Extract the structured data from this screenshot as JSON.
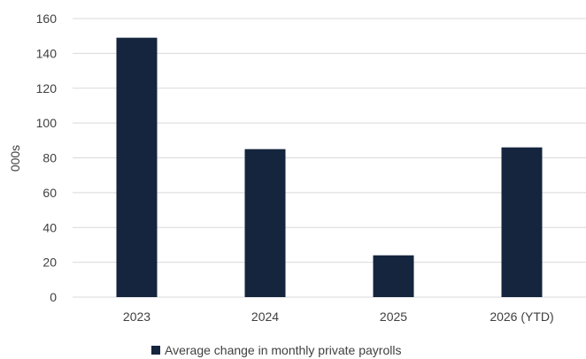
{
  "chart_data": {
    "type": "bar",
    "categories": [
      "2023",
      "2024",
      "2025",
      "2026 (YTD)"
    ],
    "series": [
      {
        "name": "Average change in monthly private payrolls",
        "values": [
          149,
          85,
          24,
          86
        ],
        "color": "#14253d"
      }
    ],
    "ylabel": "000s",
    "ylim": [
      0,
      160
    ],
    "yticks": [
      "0",
      "20",
      "40",
      "60",
      "80",
      "100",
      "120",
      "140",
      "160"
    ],
    "grid": true,
    "legend": "bottom"
  }
}
